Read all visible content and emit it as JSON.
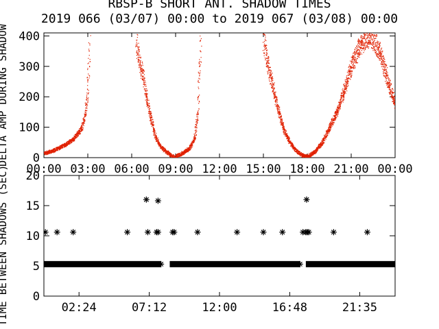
{
  "title": "RBSP-B SHORT ANT. SHADOW TIMES",
  "subtitle": "2019 066 (03/07) 00:00 to 2019 067 (03/08) 00:00",
  "colors": {
    "points": "#e02000",
    "axes": "#000000",
    "background": "#ffffff"
  },
  "chart_data": [
    {
      "type": "scatter",
      "ylabel": "DELTA AMP DURING SHADOW",
      "xlabel": "",
      "xlim": [
        0,
        24
      ],
      "ylim": [
        0,
        410
      ],
      "x_ticks": [
        0,
        3,
        6,
        9,
        12,
        15,
        18,
        21,
        24
      ],
      "x_tick_labels": [
        "00:00",
        "03:00",
        "06:00",
        "09:00",
        "12:00",
        "15:00",
        "18:00",
        "21:00",
        "00:00"
      ],
      "y_ticks": [
        0,
        100,
        200,
        300,
        400
      ],
      "y_tick_labels": [
        "0",
        "100",
        "200",
        "300",
        "400"
      ],
      "grid": false,
      "series": [
        {
          "color": "#e02000",
          "marker": "dot",
          "segments": [
            {
              "x": [
                0.0,
                0.5,
                1.0,
                1.5,
                2.0,
                2.3,
                2.6,
                2.8,
                2.95,
                3.05,
                3.1
              ],
              "y": [
                15,
                22,
                32,
                45,
                62,
                80,
                100,
                140,
                200,
                300,
                380
              ]
            },
            {
              "x": [
                6.3,
                6.5,
                6.8,
                7.0,
                7.2,
                7.4,
                7.6,
                7.9,
                8.2,
                8.5,
                8.8,
                9.0
              ],
              "y": [
                380,
                320,
                260,
                200,
                150,
                110,
                70,
                40,
                25,
                15,
                5,
                0
              ]
            },
            {
              "x": [
                9.0,
                9.3,
                9.6,
                9.9,
                10.1,
                10.3,
                10.5,
                10.6,
                10.7
              ],
              "y": [
                5,
                12,
                20,
                30,
                45,
                70,
                150,
                280,
                380
              ]
            },
            {
              "x": [
                15.0,
                15.2,
                15.5,
                15.8,
                16.1,
                16.4,
                16.8,
                17.2,
                17.6,
                18.0
              ],
              "y": [
                390,
                330,
                260,
                200,
                140,
                90,
                50,
                25,
                10,
                3
              ]
            },
            {
              "x": [
                18.0,
                18.5,
                19.0,
                19.5,
                20.0,
                20.5,
                21.0,
                21.5,
                22.0,
                22.5,
                23.0,
                23.5,
                24.0
              ],
              "y": [
                5,
                20,
                50,
                100,
                150,
                220,
                300,
                360,
                400,
                390,
                340,
                250,
                180
              ]
            }
          ]
        }
      ]
    },
    {
      "type": "scatter",
      "ylabel": "TIME BETWEEN SHADOWS (SEC)",
      "xlabel": "",
      "xlim": [
        0,
        24
      ],
      "ylim": [
        0,
        20
      ],
      "x_ticks": [
        2.4,
        7.2,
        12.0,
        16.8,
        21.583
      ],
      "x_tick_labels": [
        "02:24",
        "07:12",
        "12:00",
        "16:48",
        "21:35"
      ],
      "y_ticks": [
        0,
        5,
        10,
        15,
        20
      ],
      "y_tick_labels": [
        "0",
        "5",
        "10",
        "15",
        "20"
      ],
      "grid": false,
      "series": [
        {
          "color": "#000000",
          "marker": "asterisk",
          "band": {
            "y": 5.3,
            "ranges": [
              [
                0.0,
                8.0
              ],
              [
                8.6,
                17.5
              ],
              [
                17.9,
                24.0
              ]
            ]
          },
          "points": [
            {
              "x": 0.1,
              "y": 10.6
            },
            {
              "x": 0.9,
              "y": 10.6
            },
            {
              "x": 2.0,
              "y": 10.6
            },
            {
              "x": 5.7,
              "y": 10.6
            },
            {
              "x": 7.1,
              "y": 10.6
            },
            {
              "x": 7.7,
              "y": 10.6
            },
            {
              "x": 7.8,
              "y": 10.6
            },
            {
              "x": 8.8,
              "y": 10.6
            },
            {
              "x": 8.9,
              "y": 10.6
            },
            {
              "x": 10.5,
              "y": 10.6
            },
            {
              "x": 13.2,
              "y": 10.6
            },
            {
              "x": 15.0,
              "y": 10.6
            },
            {
              "x": 16.3,
              "y": 10.6
            },
            {
              "x": 17.7,
              "y": 10.6
            },
            {
              "x": 17.9,
              "y": 10.6
            },
            {
              "x": 18.0,
              "y": 10.6
            },
            {
              "x": 18.1,
              "y": 10.6
            },
            {
              "x": 19.8,
              "y": 10.6
            },
            {
              "x": 22.1,
              "y": 10.6
            },
            {
              "x": 7.0,
              "y": 16.0
            },
            {
              "x": 7.8,
              "y": 15.8
            },
            {
              "x": 17.95,
              "y": 16.0
            }
          ]
        }
      ]
    }
  ]
}
